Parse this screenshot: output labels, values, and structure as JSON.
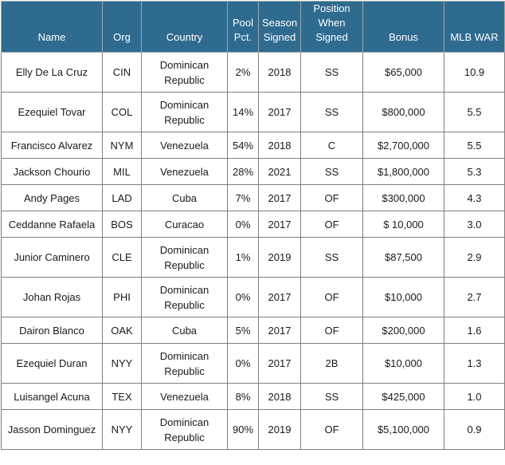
{
  "columns": [
    "Name",
    "Org",
    "Country",
    "Pool Pct.",
    "Season Signed",
    "Position When Signed",
    "Bonus",
    "MLB WAR"
  ],
  "header": {
    "name": "Name",
    "org": "Org",
    "country": "Country",
    "pool": "Pool Pct.",
    "season": "Season Signed",
    "position": "Position When Signed",
    "bonus": "Bonus",
    "war": "MLB WAR"
  },
  "rows": [
    {
      "name": "Elly De La Cruz",
      "org": "CIN",
      "country": "Dominican Republic",
      "pool": "2%",
      "season": "2018",
      "position": "SS",
      "bonus": "$65,000",
      "war": "10.9"
    },
    {
      "name": "Ezequiel Tovar",
      "org": "COL",
      "country": "Dominican Republic",
      "pool": "14%",
      "season": "2017",
      "position": "SS",
      "bonus": "$800,000",
      "war": "5.5"
    },
    {
      "name": "Francisco Alvarez",
      "org": "NYM",
      "country": "Venezuela",
      "pool": "54%",
      "season": "2018",
      "position": "C",
      "bonus": "$2,700,000",
      "war": "5.5"
    },
    {
      "name": "Jackson Chourio",
      "org": "MIL",
      "country": "Venezuela",
      "pool": "28%",
      "season": "2021",
      "position": "SS",
      "bonus": "$1,800,000",
      "war": "5.3"
    },
    {
      "name": "Andy Pages",
      "org": "LAD",
      "country": "Cuba",
      "pool": "7%",
      "season": "2017",
      "position": "OF",
      "bonus": "$300,000",
      "war": "4.3"
    },
    {
      "name": "Ceddanne Rafaela",
      "org": "BOS",
      "country": "Curacao",
      "pool": "0%",
      "season": "2017",
      "position": "OF",
      "bonus": "$ 10,000",
      "war": "3.0"
    },
    {
      "name": "Junior Caminero",
      "org": "CLE",
      "country": "Dominican Republic",
      "pool": "1%",
      "season": "2019",
      "position": "SS",
      "bonus": "$87,500",
      "war": "2.9"
    },
    {
      "name": "Johan Rojas",
      "org": "PHI",
      "country": "Dominican Republic",
      "pool": "0%",
      "season": "2017",
      "position": "OF",
      "bonus": "$10,000",
      "war": "2.7"
    },
    {
      "name": "Dairon Blanco",
      "org": "OAK",
      "country": "Cuba",
      "pool": "5%",
      "season": "2017",
      "position": "OF",
      "bonus": "$200,000",
      "war": "1.6"
    },
    {
      "name": "Ezequiel Duran",
      "org": "NYY",
      "country": "Dominican Republic",
      "pool": "0%",
      "season": "2017",
      "position": "2B",
      "bonus": "$10,000",
      "war": "1.3"
    },
    {
      "name": "Luisangel Acuna",
      "org": "TEX",
      "country": "Venezuela",
      "pool": "8%",
      "season": "2018",
      "position": "SS",
      "bonus": "$425,000",
      "war": "1.0"
    },
    {
      "name": "Jasson Dominguez",
      "org": "NYY",
      "country": "Dominican Republic",
      "pool": "90%",
      "season": "2019",
      "position": "OF",
      "bonus": "$5,100,000",
      "war": "0.9"
    }
  ],
  "row_heights": [
    2,
    2,
    1,
    1,
    1,
    1,
    2,
    2,
    1,
    2,
    1,
    2
  ],
  "colors": {
    "header_bg": "#2f6b8f",
    "header_text": "#ffffff",
    "border": "#7f7f7f"
  }
}
